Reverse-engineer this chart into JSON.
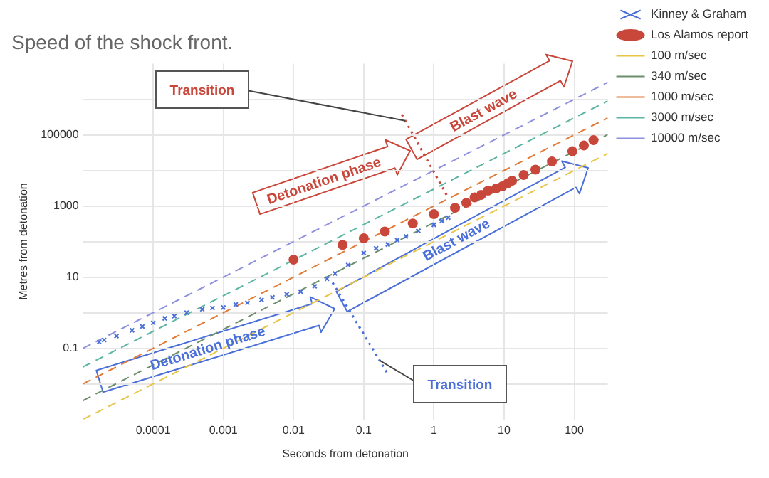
{
  "chart_data": {
    "type": "scatter",
    "title": "Speed of the shock front.",
    "xlabel": "Seconds from detonation",
    "ylabel": "Metres from detonation",
    "log": "xy",
    "grid": true,
    "legend": "right",
    "xlim": [
      1e-05,
      300
    ],
    "xticks": [
      0.0001,
      0.001,
      0.01,
      0.1,
      1,
      10,
      100
    ],
    "ylim": [
      0.001,
      10000000
    ],
    "yticks": [
      {
        "value": 0.01,
        "label": null
      },
      0.1,
      {
        "value": 1,
        "label": null
      },
      10,
      {
        "value": 100,
        "label": null
      },
      1000,
      {
        "value": 10000,
        "label": null
      },
      100000,
      {
        "value": 1000000,
        "label": null
      }
    ],
    "series": [
      {
        "name": "Kinney & Graham",
        "marker": "cross",
        "color": "#4a6fd8",
        "x": [
          1.7e-05,
          2e-05,
          3e-05,
          5e-05,
          7e-05,
          0.0001,
          0.000146,
          0.0002,
          0.0003,
          0.0005,
          0.0007,
          0.001,
          0.0015,
          0.0022,
          0.0035,
          0.005,
          0.008,
          0.0126,
          0.02,
          0.03,
          0.039,
          0.06,
          0.1,
          0.15,
          0.22,
          0.3,
          0.4,
          0.6,
          1,
          1.3,
          1.6
        ],
        "values": [
          0.15,
          0.17,
          0.22,
          0.32,
          0.41,
          0.52,
          0.69,
          0.8,
          1,
          1.25,
          1.35,
          1.4,
          1.7,
          1.9,
          2.3,
          2.7,
          3.3,
          3.9,
          5.5,
          9,
          12.6,
          22,
          48,
          65,
          83,
          110,
          140,
          200,
          295,
          380,
          470
        ]
      },
      {
        "name": "Los Alamos report",
        "marker": "circle",
        "color": "#c9473a",
        "x": [
          0.01,
          0.05,
          0.1,
          0.2,
          0.5,
          1,
          2,
          2.9,
          3.8,
          4.7,
          5.9,
          7.7,
          9.4,
          11.3,
          13,
          19,
          28,
          48,
          94,
          137,
          188
        ],
        "values": [
          31,
          81,
          124,
          192,
          323,
          590,
          890,
          1230,
          1740,
          2040,
          2690,
          3090,
          3550,
          4370,
          5130,
          7410,
          10500,
          17800,
          34700,
          50100,
          70800
        ]
      },
      {
        "name": "100 m/sec",
        "type": "line",
        "marker": "none",
        "line_style": "dashed",
        "color": "#e8c547",
        "x": [
          1e-05,
          300
        ],
        "values": [
          0.001,
          30000
        ]
      },
      {
        "name": "340 m/sec",
        "type": "line",
        "marker": "none",
        "line_style": "dashed",
        "color": "#6b8e6b",
        "x": [
          1e-05,
          300
        ],
        "values": [
          0.0034,
          102000
        ]
      },
      {
        "name": "1000 m/sec",
        "type": "line",
        "marker": "none",
        "line_style": "dashed",
        "color": "#e07b39",
        "x": [
          1e-05,
          300
        ],
        "values": [
          0.01,
          300000
        ]
      },
      {
        "name": "3000 m/sec",
        "type": "line",
        "marker": "none",
        "line_style": "dashed",
        "color": "#5bb5a2",
        "x": [
          1e-05,
          300
        ],
        "values": [
          0.03,
          900000
        ]
      },
      {
        "name": "10000 m/sec",
        "type": "line",
        "marker": "none",
        "line_style": "dashed",
        "color": "#8f8fe0",
        "x": [
          1e-05,
          300
        ],
        "values": [
          0.1,
          3000000
        ]
      },
      {
        "type": "line",
        "marker": "none",
        "line_style": "dotted",
        "color": "#c9473a",
        "x": [
          0.35,
          1.6
        ],
        "values": [
          370000,
          1700
        ]
      },
      {
        "type": "line",
        "marker": "none",
        "line_style": "dotted",
        "color": "#4a6fd8",
        "x": [
          0.036,
          0.22
        ],
        "values": [
          7,
          0.019
        ]
      }
    ],
    "annotations": [
      {
        "text": "Transition",
        "x": 0.39,
        "y": 250000
      },
      "Detonation phase",
      "Blast wave",
      "Detonation phase",
      "Blast wave",
      {
        "text": "Transition",
        "x": 0.17,
        "y": 0.045
      }
    ]
  }
}
